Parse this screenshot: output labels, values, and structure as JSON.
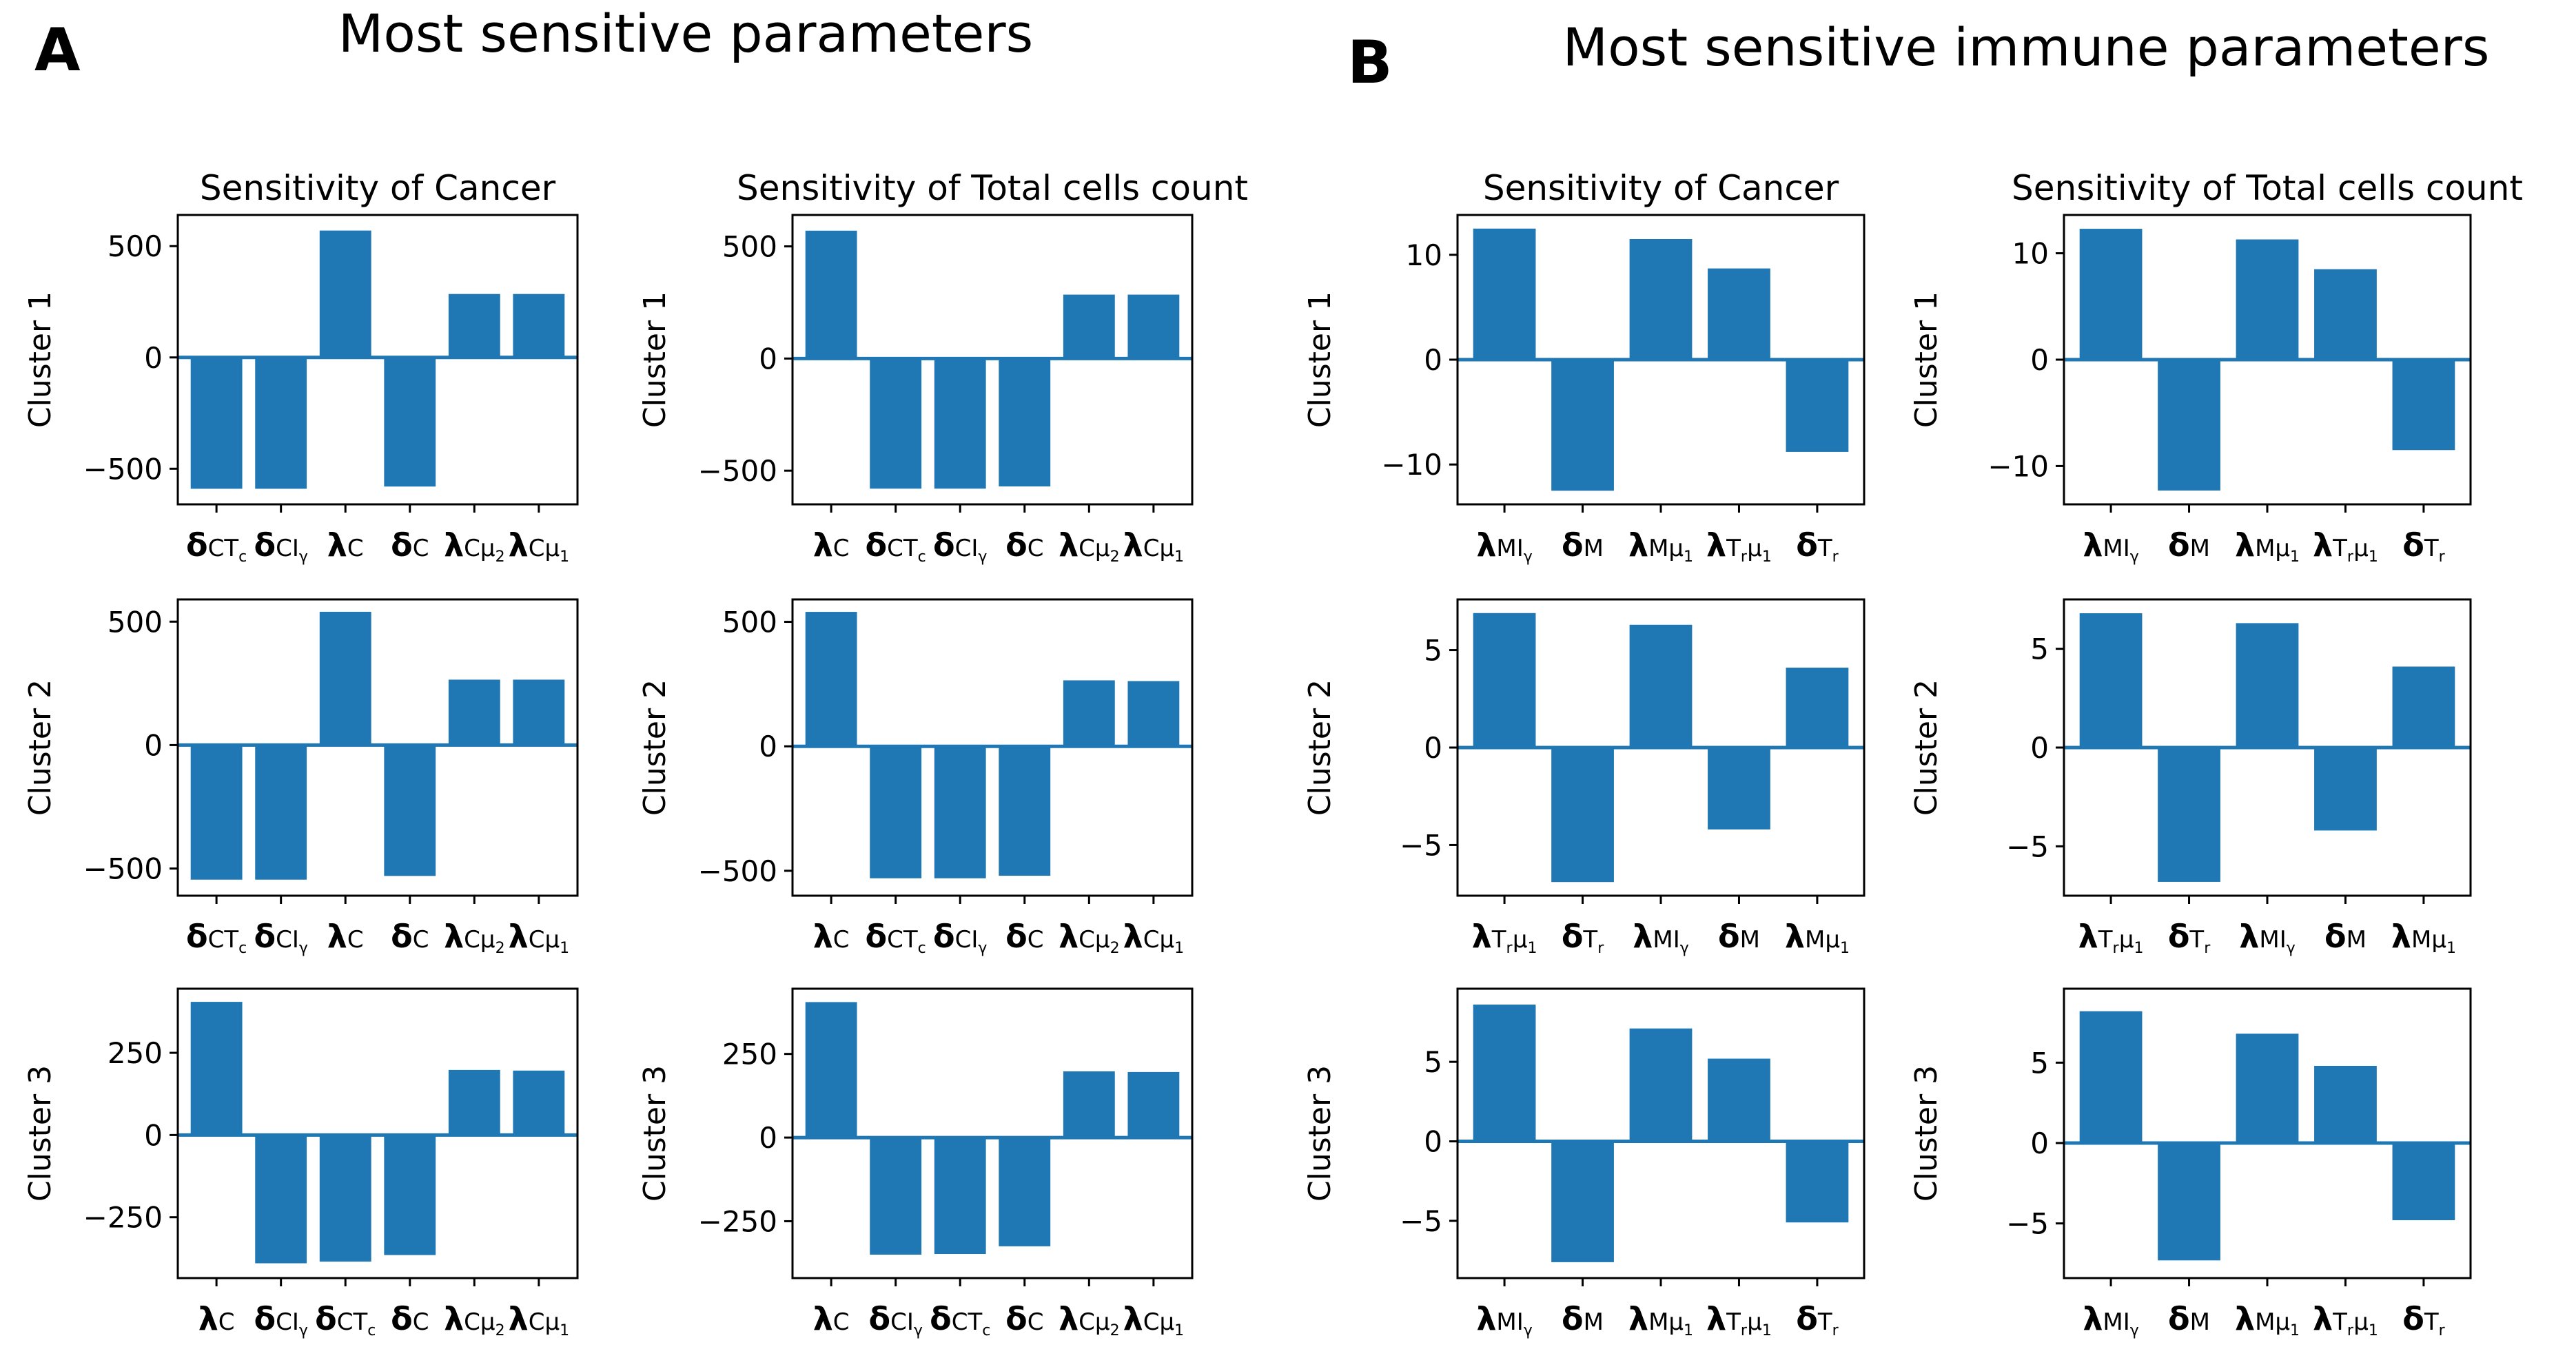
{
  "panels": [
    {
      "label": "A",
      "title": "Most sensitive parameters"
    },
    {
      "label": "B",
      "title": "Most sensitive immune parameters"
    }
  ],
  "colors": {
    "bar": "#1f77b4",
    "zero_line": "#1f77b4",
    "axis": "#000000"
  },
  "chart_data": [
    {
      "type": "bar",
      "panel": "A",
      "row": 1,
      "col": 1,
      "title": "Sensitivity of Cancer",
      "ylabel": "Cluster 1",
      "categories": [
        "δCT_c",
        "δCI_γ",
        "λC",
        "δC",
        "λCμ2",
        "λCμ1"
      ],
      "values": [
        -590,
        -590,
        570,
        -580,
        285,
        285
      ],
      "ylim": [
        -660,
        640
      ],
      "yticks": [
        500,
        0,
        -500
      ],
      "yticklabels": [
        "500",
        "0",
        "−500"
      ]
    },
    {
      "type": "bar",
      "panel": "A",
      "row": 1,
      "col": 2,
      "title": "Sensitivity of Total cells count",
      "ylabel": "Cluster 1",
      "categories": [
        "λC",
        "δCT_c",
        "δCI_γ",
        "δC",
        "λCμ2",
        "λCμ1"
      ],
      "values": [
        570,
        -580,
        -580,
        -570,
        285,
        285
      ],
      "ylim": [
        -650,
        640
      ],
      "yticks": [
        500,
        0,
        -500
      ],
      "yticklabels": [
        "500",
        "0",
        "−500"
      ]
    },
    {
      "type": "bar",
      "panel": "A",
      "row": 2,
      "col": 1,
      "title": "",
      "ylabel": "Cluster 2",
      "categories": [
        "δCT_c",
        "δCI_γ",
        "λC",
        "δC",
        "λCμ2",
        "λCμ1"
      ],
      "values": [
        -545,
        -545,
        540,
        -530,
        265,
        265
      ],
      "ylim": [
        -610,
        590
      ],
      "yticks": [
        500,
        0,
        -500
      ],
      "yticklabels": [
        "500",
        "0",
        "−500"
      ]
    },
    {
      "type": "bar",
      "panel": "A",
      "row": 2,
      "col": 2,
      "title": "",
      "ylabel": "Cluster 2",
      "categories": [
        "λC",
        "δCT_c",
        "δCI_γ",
        "δC",
        "λCμ2",
        "λCμ1"
      ],
      "values": [
        540,
        -530,
        -530,
        -520,
        265,
        262
      ],
      "ylim": [
        -600,
        590
      ],
      "yticks": [
        500,
        0,
        -500
      ],
      "yticklabels": [
        "500",
        "0",
        "−500"
      ]
    },
    {
      "type": "bar",
      "panel": "A",
      "row": 3,
      "col": 1,
      "title": "",
      "ylabel": "Cluster 3",
      "categories": [
        "λC",
        "δCI_γ",
        "δCT_c",
        "δC",
        "λCμ2",
        "λCμ1"
      ],
      "values": [
        405,
        -390,
        -385,
        -365,
        198,
        196
      ],
      "ylim": [
        -435,
        445
      ],
      "yticks": [
        250,
        0,
        -250
      ],
      "yticklabels": [
        "250",
        "0",
        "−250"
      ]
    },
    {
      "type": "bar",
      "panel": "A",
      "row": 3,
      "col": 2,
      "title": "",
      "ylabel": "Cluster 3",
      "categories": [
        "λC",
        "δCI_γ",
        "δCT_c",
        "δC",
        "λCμ2",
        "λCμ1"
      ],
      "values": [
        405,
        -350,
        -348,
        -325,
        198,
        196
      ],
      "ylim": [
        -420,
        445
      ],
      "yticks": [
        250,
        0,
        -250
      ],
      "yticklabels": [
        "250",
        "0",
        "−250"
      ]
    },
    {
      "type": "bar",
      "panel": "B",
      "row": 1,
      "col": 1,
      "title": "Sensitivity of Cancer",
      "ylabel": "Cluster 1",
      "categories": [
        "λMI_γ",
        "δM",
        "λMμ1",
        "λT_rμ1",
        "δT_r"
      ],
      "values": [
        12.5,
        -12.5,
        11.5,
        8.7,
        -8.8
      ],
      "ylim": [
        -13.8,
        13.8
      ],
      "yticks": [
        10,
        0,
        -10
      ],
      "yticklabels": [
        "10",
        "0",
        "−10"
      ]
    },
    {
      "type": "bar",
      "panel": "B",
      "row": 1,
      "col": 2,
      "title": "Sensitivity of Total cells count",
      "ylabel": "Cluster 1",
      "categories": [
        "λMI_γ",
        "δM",
        "λMμ1",
        "λT_rμ1",
        "δT_r"
      ],
      "values": [
        12.3,
        -12.3,
        11.3,
        8.5,
        -8.5
      ],
      "ylim": [
        -13.6,
        13.6
      ],
      "yticks": [
        10,
        0,
        -10
      ],
      "yticklabels": [
        "10",
        "0",
        "−10"
      ]
    },
    {
      "type": "bar",
      "panel": "B",
      "row": 2,
      "col": 1,
      "title": "",
      "ylabel": "Cluster 2",
      "categories": [
        "λT_rμ1",
        "δT_r",
        "λMI_γ",
        "δM",
        "λMμ1"
      ],
      "values": [
        6.9,
        -6.9,
        6.3,
        -4.2,
        4.1
      ],
      "ylim": [
        -7.6,
        7.6
      ],
      "yticks": [
        5,
        0,
        -5
      ],
      "yticklabels": [
        "5",
        "0",
        "−5"
      ]
    },
    {
      "type": "bar",
      "panel": "B",
      "row": 2,
      "col": 2,
      "title": "",
      "ylabel": "Cluster 2",
      "categories": [
        "λT_rμ1",
        "δT_r",
        "λMI_γ",
        "δM",
        "λMμ1"
      ],
      "values": [
        6.8,
        -6.8,
        6.3,
        -4.2,
        4.1
      ],
      "ylim": [
        -7.5,
        7.5
      ],
      "yticks": [
        5,
        0,
        -5
      ],
      "yticklabels": [
        "5",
        "0",
        "−5"
      ]
    },
    {
      "type": "bar",
      "panel": "B",
      "row": 3,
      "col": 1,
      "title": "",
      "ylabel": "Cluster 3",
      "categories": [
        "λMI_γ",
        "δM",
        "λMμ1",
        "λT_rμ1",
        "δT_r"
      ],
      "values": [
        8.6,
        -7.6,
        7.1,
        5.2,
        -5.1
      ],
      "ylim": [
        -8.6,
        9.6
      ],
      "yticks": [
        5,
        0,
        -5
      ],
      "yticklabels": [
        "5",
        "0",
        "−5"
      ]
    },
    {
      "type": "bar",
      "panel": "B",
      "row": 3,
      "col": 2,
      "title": "",
      "ylabel": "Cluster 3",
      "categories": [
        "λMI_γ",
        "δM",
        "λMμ1",
        "λT_rμ1",
        "δT_r"
      ],
      "values": [
        8.2,
        -7.3,
        6.8,
        4.8,
        -4.8
      ],
      "ylim": [
        -8.4,
        9.6
      ],
      "yticks": [
        5,
        0,
        -5
      ],
      "yticklabels": [
        "5",
        "0",
        "−5"
      ]
    }
  ]
}
